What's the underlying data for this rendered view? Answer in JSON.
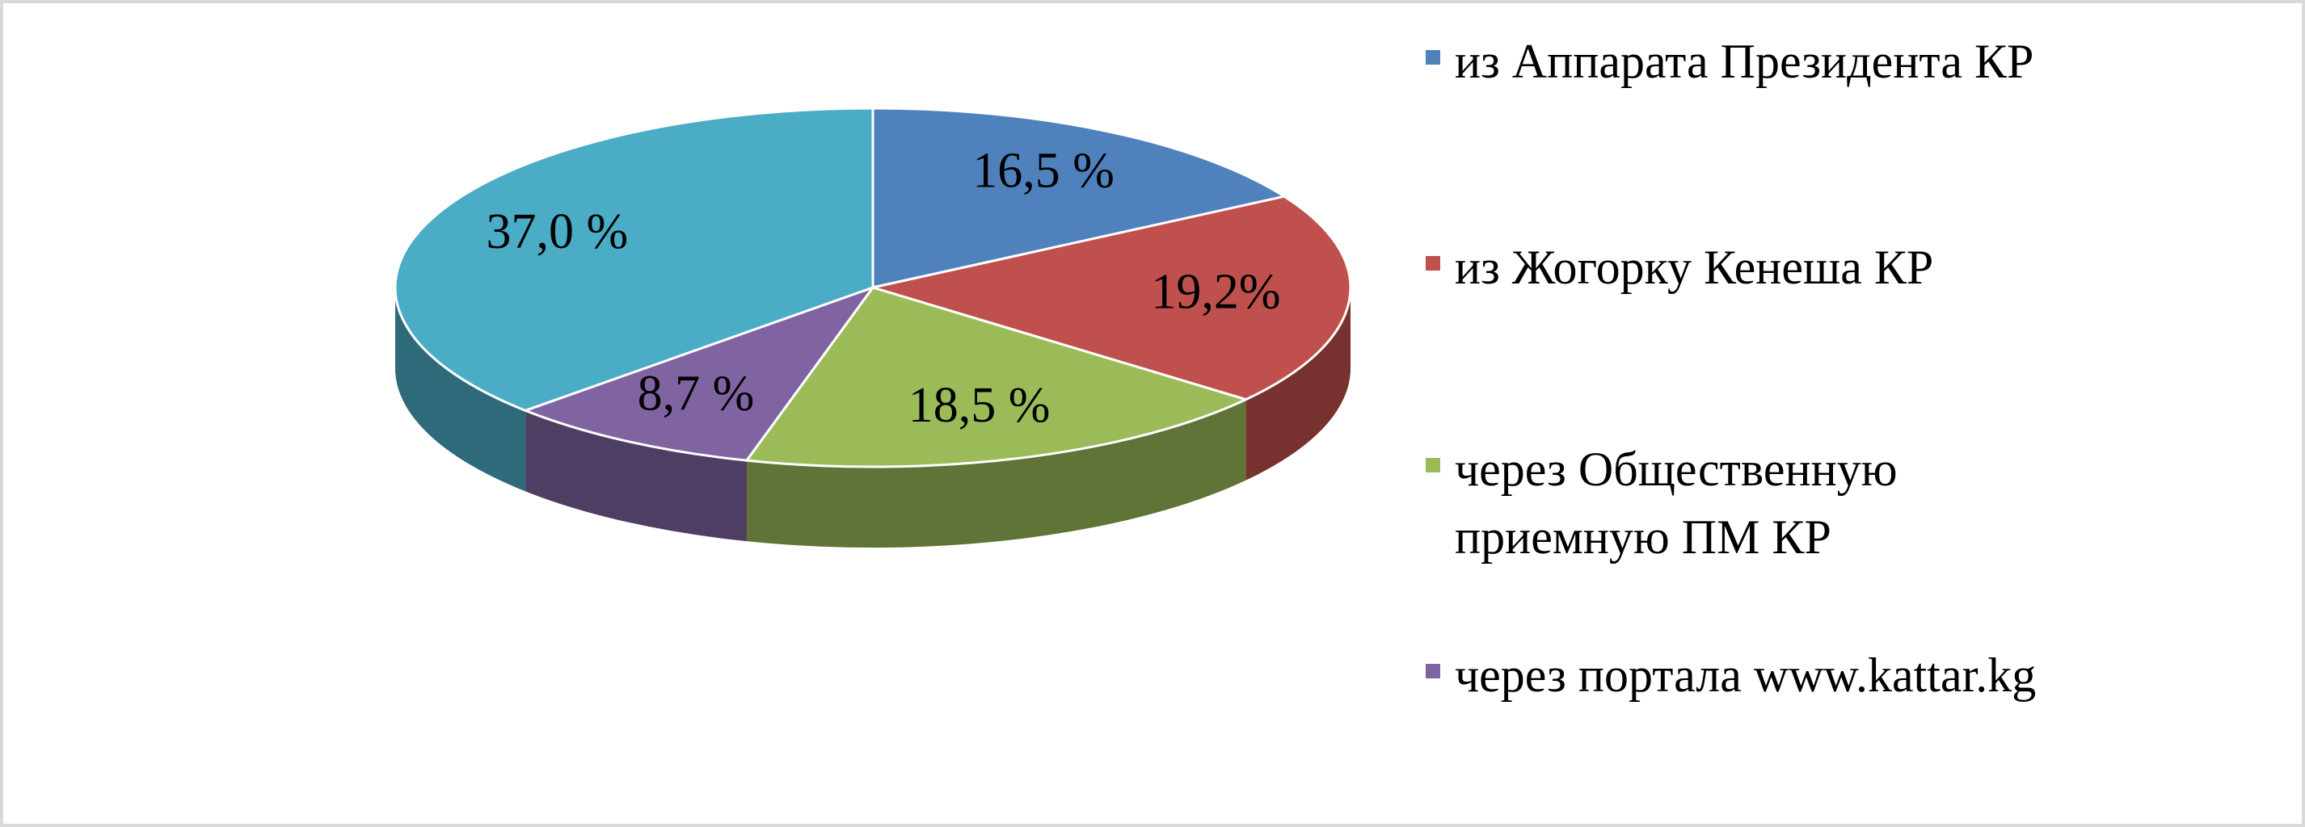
{
  "chart_data": {
    "type": "pie",
    "categories": [
      "из  Аппарата Президента КР",
      "из  Жогорку  Кенеша КР",
      "через Общественную\nприемную  ПМ КР",
      "через портала www.kattar.kg",
      null
    ],
    "values": [
      16.5,
      19.2,
      18.5,
      8.7,
      37.0
    ],
    "value_labels": [
      "16,5 %",
      "19,2%",
      "18,5 %",
      "8,7 %",
      "37,0 %"
    ],
    "colors": [
      "#4f81bd",
      "#c0504d",
      "#9bbb59",
      "#8064a2",
      "#4bacc6"
    ],
    "legend": "right"
  }
}
